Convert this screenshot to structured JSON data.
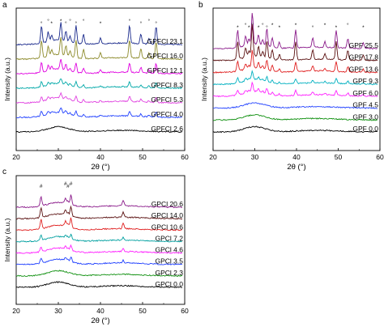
{
  "figure": {
    "panel_letters": [
      "a",
      "b",
      "c"
    ]
  },
  "chart_data": [
    {
      "type": "line",
      "panel_letter": "a",
      "xlabel": "2θ (°)",
      "ylabel": "Intensity (a.u.)",
      "xlim": [
        20,
        60
      ],
      "xticks": [
        20,
        30,
        40,
        50,
        60
      ],
      "grid": false,
      "legend": "inline labels at right end of each curve",
      "series": [
        {
          "name": "GPFCl 23.1",
          "color": "#1a2a8c",
          "sharp": "heavy"
        },
        {
          "name": "GPFCl 16.0",
          "color": "#8c8a2a",
          "sharp": "heavy"
        },
        {
          "name": "GPFCl 12.1",
          "color": "#e000e0",
          "sharp": "medium"
        },
        {
          "name": "GPFCl 8.3",
          "color": "#00a8a8",
          "sharp": "light"
        },
        {
          "name": "GPFCl 5.3",
          "color": "#e040e0",
          "sharp": "light"
        },
        {
          "name": "GPFCl 4.0",
          "color": "#2040ff",
          "sharp": "light"
        },
        {
          "name": "GPFCl 2.6",
          "color": "#000000",
          "sharp": "none"
        }
      ],
      "annotations": [
        "°",
        "°",
        "*",
        "*",
        "°",
        "°",
        "°",
        "°",
        "*",
        "°",
        "°",
        "°",
        "°"
      ]
    },
    {
      "type": "line",
      "panel_letter": "b",
      "xlabel": "2θ (°)",
      "ylabel": "Intensity (a.u.)",
      "xlim": [
        20,
        60
      ],
      "xticks": [
        20,
        30,
        40,
        50,
        60
      ],
      "grid": false,
      "legend": "inline labels at right end of each curve",
      "series": [
        {
          "name": "GPF 25.5",
          "color": "#8a1a8a",
          "sharp": "heavy"
        },
        {
          "name": "GPF 17.8",
          "color": "#5a1010",
          "sharp": "heavy"
        },
        {
          "name": "GPF 13.6",
          "color": "#e02020",
          "sharp": "medium"
        },
        {
          "name": "GPF 9.3",
          "color": "#00b0c0",
          "sharp": "light"
        },
        {
          "name": "GPF 6.0",
          "color": "#ff20ff",
          "sharp": "light"
        },
        {
          "name": "GPF 4.5",
          "color": "#2040ff",
          "sharp": "none"
        },
        {
          "name": "GPF 3.0",
          "color": "#109010",
          "sharp": "none"
        },
        {
          "name": "GPF 0.0",
          "color": "#000000",
          "sharp": "none"
        }
      ],
      "annotations": [
        "*",
        "°",
        "*",
        "°",
        "*",
        "°",
        "°",
        "*",
        "*",
        "*",
        "°",
        "*",
        "*",
        "°",
        "*"
      ]
    },
    {
      "type": "line",
      "panel_letter": "c",
      "xlabel": "2θ (°)",
      "ylabel": "Intensity (a.u.)",
      "xlim": [
        20,
        60
      ],
      "xticks": [
        20,
        30,
        40,
        50,
        60
      ],
      "grid": false,
      "legend": "inline labels at right end of each curve",
      "series": [
        {
          "name": "GPCl 20.6",
          "color": "#8a1a8a",
          "sharp": "medium"
        },
        {
          "name": "GPCl 14.0",
          "color": "#5a1010",
          "sharp": "medium"
        },
        {
          "name": "GPCl 10.6",
          "color": "#e02020",
          "sharp": "medium"
        },
        {
          "name": "GPCl 7.2",
          "color": "#00a0a0",
          "sharp": "light"
        },
        {
          "name": "GPCl 4.6",
          "color": "#ff20ff",
          "sharp": "light"
        },
        {
          "name": "GPCl 3.5",
          "color": "#2040ff",
          "sharp": "light"
        },
        {
          "name": "GPCl 2.3",
          "color": "#109010",
          "sharp": "none"
        },
        {
          "name": "GPCl 0.0",
          "color": "#000000",
          "sharp": "none"
        }
      ],
      "annotations": [
        "#",
        "#",
        "#",
        "#"
      ]
    }
  ]
}
